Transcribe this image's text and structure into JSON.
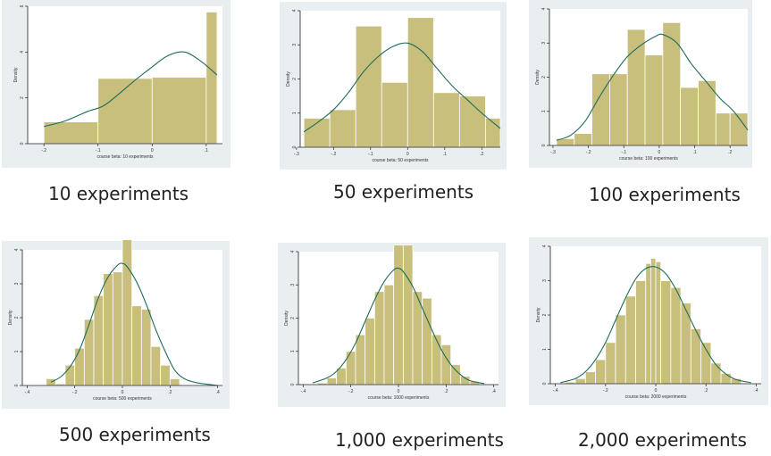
{
  "colors": {
    "bar_fill": "#c9bf7c",
    "kde_line": "#1e6b5b",
    "panel_bg": "#e9eef1",
    "plot_bg": "#ffffff"
  },
  "captions": [
    "10 experiments",
    "50 experiments",
    "100 experiments",
    "500 experiments",
    "1,000 experiments",
    "2,000 experiments"
  ],
  "chart_data": [
    {
      "type": "bar",
      "xlabel": "course beta: 10 experiments",
      "ylabel": "Density",
      "xlim": [
        -0.23,
        0.13
      ],
      "ylim": [
        0,
        6
      ],
      "xticks": [
        -0.2,
        -0.1,
        0,
        0.1
      ],
      "xtick_labels": [
        "-.2",
        "-.1",
        "0",
        ".1"
      ],
      "yticks": [
        0,
        2,
        4,
        6
      ],
      "ytick_labels": [
        "0",
        "2",
        "4",
        "6"
      ],
      "bin_edges": [
        -0.2,
        -0.1,
        0.0,
        0.1,
        0.12
      ],
      "heights": [
        0.95,
        2.85,
        2.9,
        5.75
      ],
      "kde": {
        "x": [
          -0.2,
          -0.16,
          -0.12,
          -0.09,
          -0.06,
          -0.03,
          0.0,
          0.03,
          0.06,
          0.09,
          0.12
        ],
        "y": [
          0.75,
          1.0,
          1.4,
          1.65,
          2.2,
          2.8,
          3.35,
          3.85,
          4.0,
          3.6,
          3.0
        ]
      }
    },
    {
      "type": "bar",
      "xlabel": "course beta: 50 experiments",
      "ylabel": "Density",
      "xlim": [
        -0.29,
        0.25
      ],
      "ylim": [
        0,
        4
      ],
      "xticks": [
        -0.3,
        -0.2,
        -0.1,
        0,
        0.1,
        0.2
      ],
      "xtick_labels": [
        "-.3",
        "-.2",
        "-.1",
        "0",
        ".1",
        ".2"
      ],
      "yticks": [
        0,
        1,
        2,
        3,
        4
      ],
      "ytick_labels": [
        "0",
        "1",
        "2",
        "3",
        "4"
      ],
      "bin_edges": [
        -0.28,
        -0.21,
        -0.14,
        -0.07,
        0.0,
        0.07,
        0.14,
        0.21,
        0.25
      ],
      "heights": [
        0.85,
        1.1,
        3.55,
        1.9,
        3.8,
        1.6,
        1.5,
        0.85
      ],
      "kde": {
        "x": [
          -0.28,
          -0.24,
          -0.2,
          -0.16,
          -0.12,
          -0.08,
          -0.04,
          0.0,
          0.04,
          0.08,
          0.12,
          0.16,
          0.2,
          0.25
        ],
        "y": [
          0.45,
          0.75,
          1.1,
          1.6,
          2.2,
          2.65,
          2.95,
          3.05,
          2.8,
          2.3,
          1.8,
          1.4,
          1.0,
          0.55
        ]
      }
    },
    {
      "type": "bar",
      "xlabel": "course beta: 100 experiments",
      "ylabel": "Density",
      "xlim": [
        -0.31,
        0.25
      ],
      "ylim": [
        0,
        4
      ],
      "xticks": [
        -0.3,
        -0.2,
        -0.1,
        0,
        0.1,
        0.2
      ],
      "xtick_labels": [
        "-.3",
        "-.2",
        "-.1",
        "0",
        ".1",
        ".2"
      ],
      "yticks": [
        0,
        1,
        2,
        3,
        4
      ],
      "ytick_labels": [
        "0",
        "1",
        "2",
        "3",
        "4"
      ],
      "bin_edges": [
        -0.29,
        -0.24,
        -0.19,
        -0.14,
        -0.09,
        -0.04,
        0.01,
        0.06,
        0.11,
        0.16,
        0.2,
        0.25
      ],
      "heights": [
        0.2,
        0.35,
        2.1,
        2.1,
        3.4,
        2.65,
        3.6,
        1.7,
        1.9,
        0.95,
        0.95
      ],
      "kde": {
        "x": [
          -0.29,
          -0.25,
          -0.21,
          -0.17,
          -0.13,
          -0.09,
          -0.05,
          -0.01,
          0.01,
          0.05,
          0.09,
          0.13,
          0.17,
          0.21,
          0.25
        ],
        "y": [
          0.15,
          0.3,
          0.7,
          1.4,
          2.05,
          2.6,
          2.95,
          3.2,
          3.25,
          3.0,
          2.4,
          1.9,
          1.4,
          1.0,
          0.45
        ]
      }
    },
    {
      "type": "bar",
      "xlabel": "course beta: 500 experiments",
      "ylabel": "Density",
      "xlim": [
        -0.42,
        0.42
      ],
      "ylim": [
        0,
        4
      ],
      "xticks": [
        -0.4,
        -0.2,
        0,
        0.2,
        0.4
      ],
      "xtick_labels": [
        "-.4",
        "-.2",
        "0",
        ".2",
        ".4"
      ],
      "yticks": [
        0,
        1,
        2,
        3,
        4
      ],
      "ytick_labels": [
        "0",
        "1",
        "2",
        "3",
        "4"
      ],
      "bin_edges": [
        -0.32,
        -0.28,
        -0.24,
        -0.2,
        -0.16,
        -0.12,
        -0.08,
        -0.04,
        0.0,
        0.04,
        0.08,
        0.12,
        0.16,
        0.2,
        0.24
      ],
      "heights": [
        0.2,
        0.05,
        0.6,
        1.1,
        1.95,
        2.65,
        3.3,
        3.35,
        4.3,
        2.35,
        2.25,
        1.15,
        0.6,
        0.2
      ],
      "kde": {
        "x": [
          -0.3,
          -0.26,
          -0.22,
          -0.18,
          -0.14,
          -0.1,
          -0.06,
          -0.02,
          0.0,
          0.02,
          0.06,
          0.1,
          0.14,
          0.18,
          0.22,
          0.26,
          0.3,
          0.34,
          0.4
        ],
        "y": [
          0.1,
          0.25,
          0.55,
          1.05,
          1.8,
          2.6,
          3.2,
          3.55,
          3.6,
          3.5,
          3.05,
          2.4,
          1.65,
          1.0,
          0.45,
          0.2,
          0.1,
          0.05,
          0.0
        ]
      }
    },
    {
      "type": "bar",
      "xlabel": "course beta: 1000 experiments",
      "ylabel": "Density",
      "xlim": [
        -0.42,
        0.42
      ],
      "ylim": [
        0,
        4
      ],
      "xticks": [
        -0.4,
        -0.2,
        0,
        0.2,
        0.4
      ],
      "xtick_labels": [
        "-.4",
        "-.2",
        "0",
        ".2",
        ".4"
      ],
      "yticks": [
        0,
        1,
        2,
        3,
        4
      ],
      "ytick_labels": [
        "0",
        "1",
        "2",
        "3",
        "4"
      ],
      "bin_edges": [
        -0.34,
        -0.3,
        -0.26,
        -0.22,
        -0.18,
        -0.14,
        -0.1,
        -0.06,
        -0.02,
        0.02,
        0.06,
        0.1,
        0.14,
        0.18,
        0.22,
        0.26,
        0.3,
        0.34
      ],
      "heights": [
        0.05,
        0.2,
        0.5,
        1.0,
        1.5,
        2.0,
        2.8,
        3.0,
        4.2,
        4.2,
        2.8,
        2.6,
        1.5,
        1.2,
        0.6,
        0.25,
        0.1
      ],
      "kde": {
        "x": [
          -0.36,
          -0.3,
          -0.26,
          -0.22,
          -0.18,
          -0.14,
          -0.1,
          -0.06,
          -0.02,
          0.0,
          0.02,
          0.06,
          0.1,
          0.14,
          0.18,
          0.22,
          0.26,
          0.3,
          0.36
        ],
        "y": [
          0.05,
          0.2,
          0.4,
          0.75,
          1.25,
          1.9,
          2.55,
          3.1,
          3.45,
          3.5,
          3.4,
          2.95,
          2.3,
          1.65,
          1.05,
          0.6,
          0.3,
          0.12,
          0.03
        ]
      }
    },
    {
      "type": "bar",
      "xlabel": "course beta: 2000 experiments",
      "ylabel": "Density",
      "xlim": [
        -0.42,
        0.42
      ],
      "ylim": [
        0,
        4
      ],
      "xticks": [
        -0.4,
        -0.2,
        0,
        0.2,
        0.4
      ],
      "xtick_labels": [
        "-.4",
        "-.2",
        "0",
        ".2",
        ".4"
      ],
      "yticks": [
        0,
        1,
        2,
        3,
        4
      ],
      "ytick_labels": [
        "0",
        "1",
        "2",
        "3",
        "4"
      ],
      "bin_edges": [
        -0.36,
        -0.32,
        -0.28,
        -0.24,
        -0.2,
        -0.16,
        -0.12,
        -0.08,
        -0.04,
        -0.02,
        0.0,
        0.02,
        0.06,
        0.1,
        0.14,
        0.18,
        0.22,
        0.26,
        0.3,
        0.34
      ],
      "heights": [
        0.05,
        0.15,
        0.35,
        0.7,
        1.2,
        2.0,
        2.55,
        3.0,
        3.5,
        3.65,
        3.55,
        3.0,
        2.8,
        2.35,
        1.6,
        1.2,
        0.6,
        0.3,
        0.15
      ],
      "kde": {
        "x": [
          -0.38,
          -0.32,
          -0.28,
          -0.24,
          -0.2,
          -0.16,
          -0.12,
          -0.08,
          -0.04,
          0.0,
          0.04,
          0.08,
          0.12,
          0.16,
          0.2,
          0.24,
          0.28,
          0.32,
          0.38
        ],
        "y": [
          0.03,
          0.15,
          0.35,
          0.7,
          1.2,
          1.85,
          2.5,
          3.05,
          3.35,
          3.4,
          3.2,
          2.75,
          2.15,
          1.55,
          1.0,
          0.55,
          0.28,
          0.12,
          0.03
        ]
      }
    }
  ]
}
